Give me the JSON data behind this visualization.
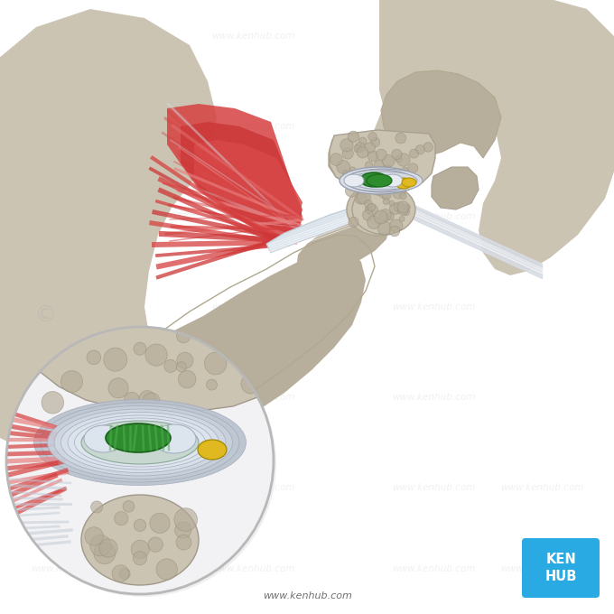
{
  "background_color": "#ffffff",
  "bone_color": "#ccc4b2",
  "bone_mid": "#b8ae9c",
  "bone_dark": "#a09888",
  "bone_spongy_fill": "#b4aa98",
  "bone_spongy_edge": "#988e7c",
  "muscle_red": "#d64040",
  "muscle_light": "#e88080",
  "muscle_pink": "#f0a0a0",
  "muscle_dark": "#b82828",
  "disc_gray": "#c8d0d8",
  "disc_green": "#2e8c2e",
  "disc_green_light": "#50b050",
  "disc_yellow": "#e0b820",
  "disc_white": "#dce4ec",
  "capsule_color": "#c0c8d4",
  "ligament_color": "#d8dce4",
  "kenhub_blue": "#29aae2",
  "kenhub_text": "KEN\nHUB",
  "website": "www.kenhub.com",
  "wm_color": "#888888",
  "wm_alpha": 0.12
}
